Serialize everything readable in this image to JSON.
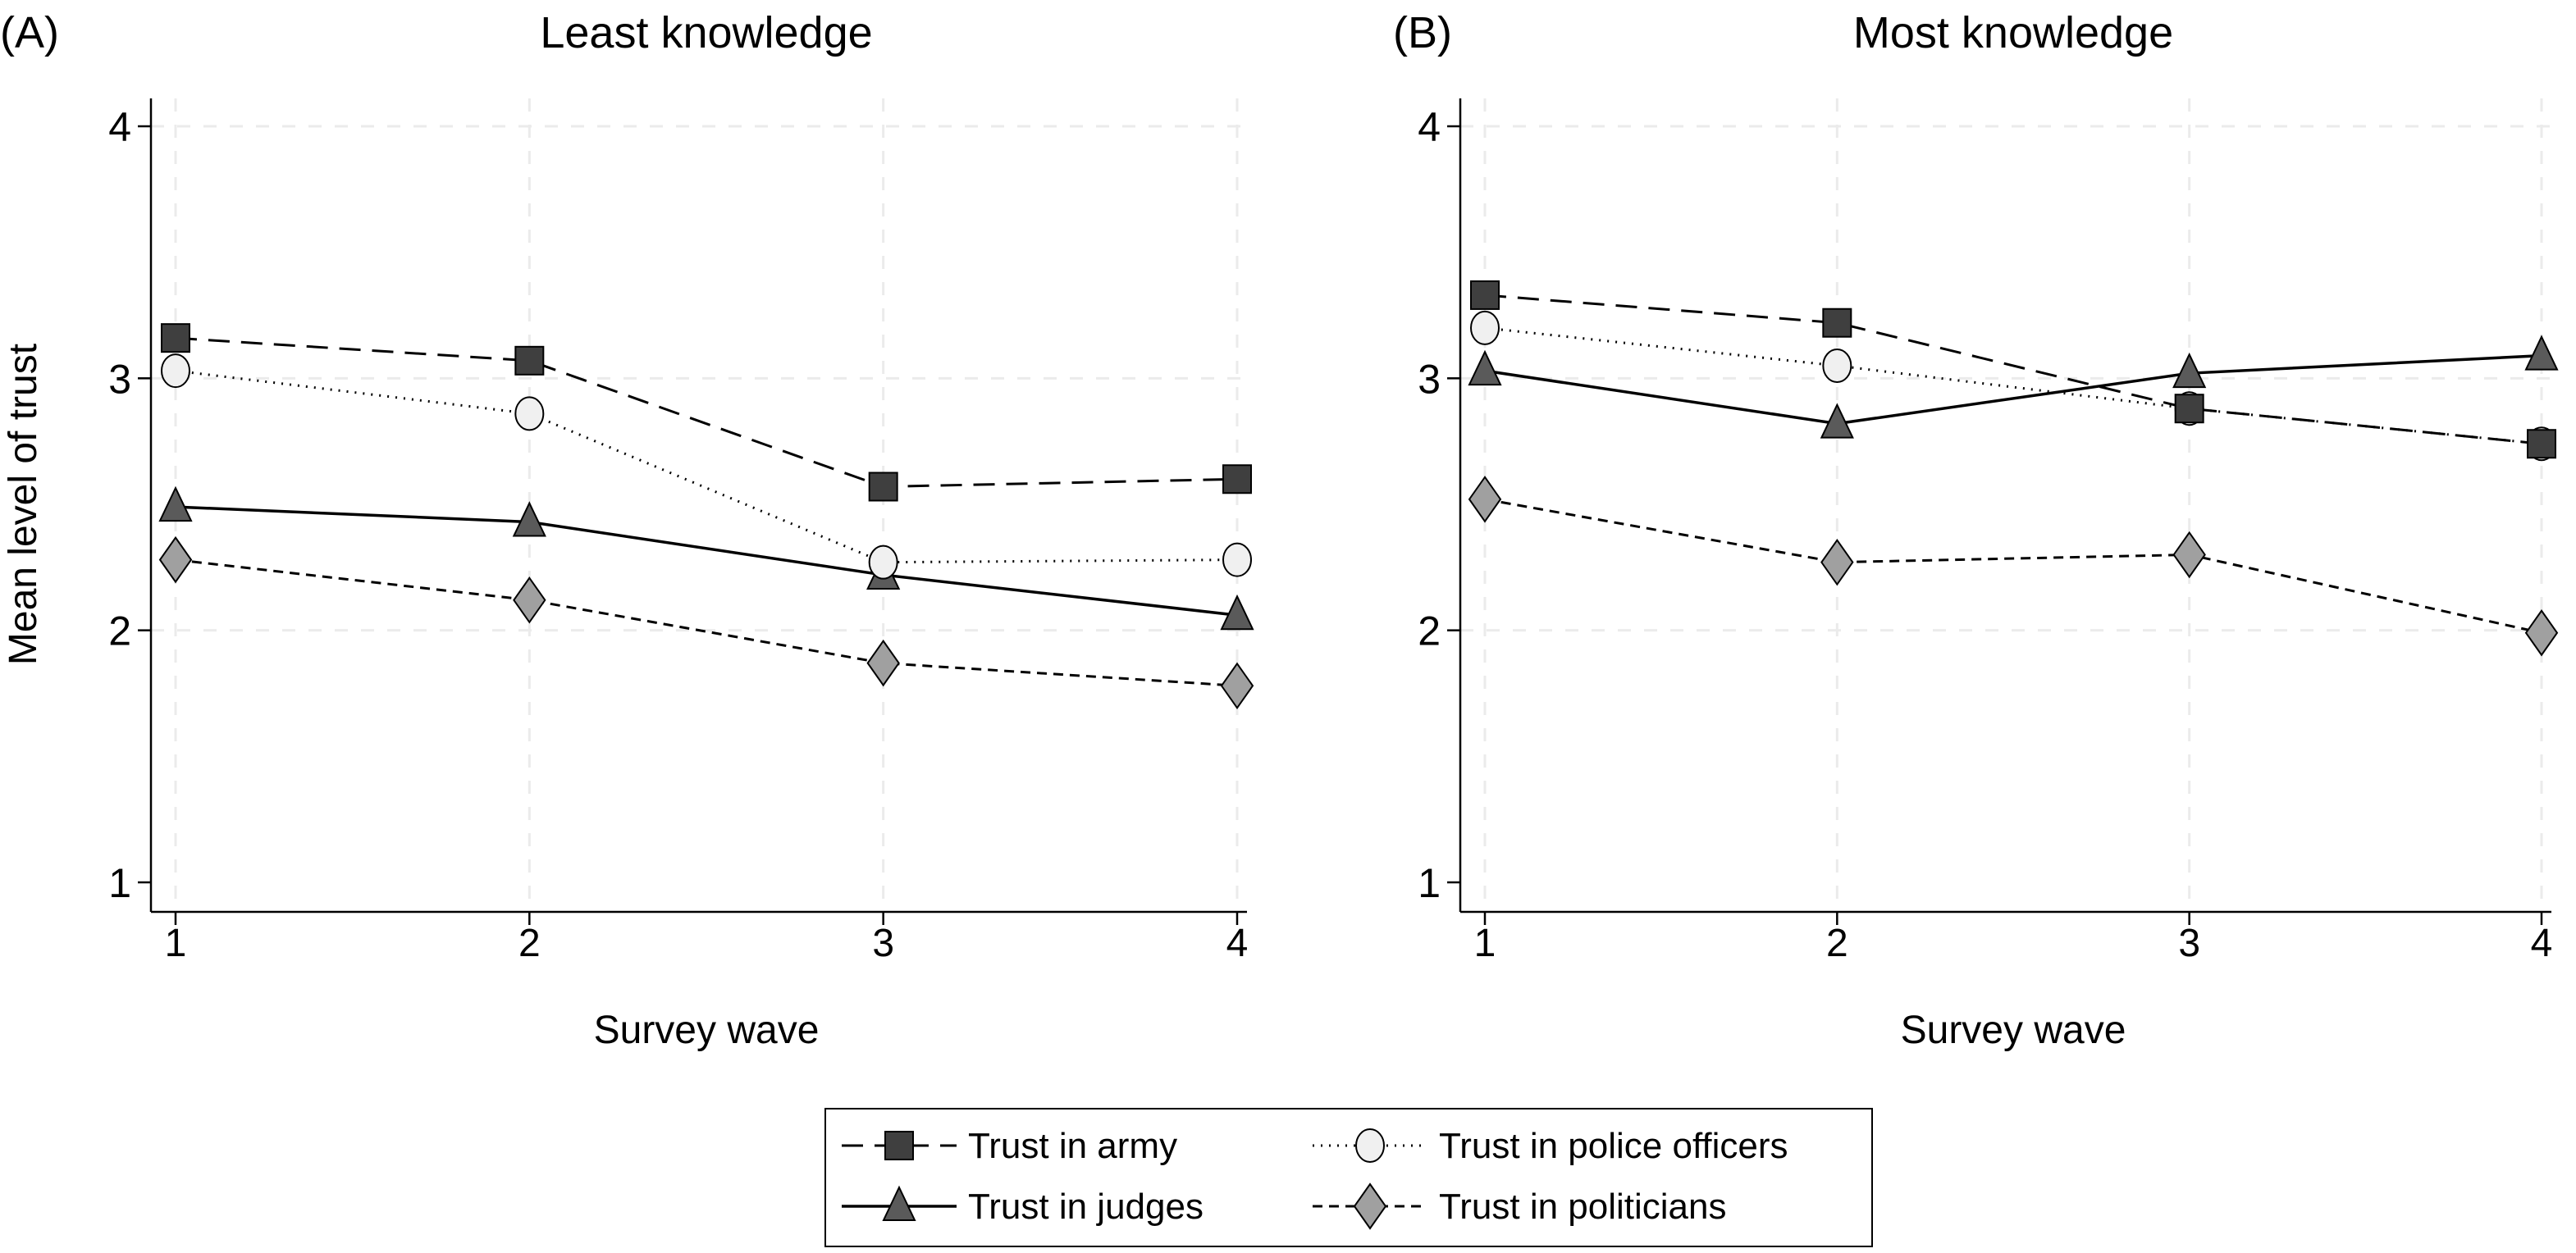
{
  "chart_data": [
    {
      "type": "line",
      "panel_label": "(A)",
      "title": "Least knowledge",
      "xlabel": "Survey wave",
      "ylabel": "Mean level of trust",
      "x": [
        1,
        2,
        3,
        4
      ],
      "xticks": [
        "1",
        "2",
        "3",
        "4"
      ],
      "yticks": [
        "1",
        "2",
        "3",
        "4"
      ],
      "ylim": [
        1,
        4
      ],
      "grid": true,
      "series": [
        {
          "name": "Trust in army",
          "values": [
            3.16,
            3.07,
            2.57,
            2.6
          ]
        },
        {
          "name": "Trust in police officers",
          "values": [
            3.03,
            2.86,
            2.27,
            2.28
          ]
        },
        {
          "name": "Trust in judges",
          "values": [
            2.49,
            2.43,
            2.22,
            2.06
          ]
        },
        {
          "name": "Trust in politicians",
          "values": [
            2.28,
            2.12,
            1.87,
            1.78
          ]
        }
      ]
    },
    {
      "type": "line",
      "panel_label": "(B)",
      "title": "Most knowledge",
      "xlabel": "Survey wave",
      "ylabel": "",
      "x": [
        1,
        2,
        3,
        4
      ],
      "xticks": [
        "1",
        "2",
        "3",
        "4"
      ],
      "yticks": [
        "1",
        "2",
        "3",
        "4"
      ],
      "ylim": [
        1,
        4
      ],
      "grid": true,
      "series": [
        {
          "name": "Trust in army",
          "values": [
            3.33,
            3.22,
            2.88,
            2.74
          ]
        },
        {
          "name": "Trust in police officers",
          "values": [
            3.2,
            3.05,
            2.88,
            2.74
          ]
        },
        {
          "name": "Trust in judges",
          "values": [
            3.03,
            2.82,
            3.02,
            3.09
          ]
        },
        {
          "name": "Trust in politicians",
          "values": [
            2.52,
            2.27,
            2.3,
            1.99
          ]
        }
      ]
    }
  ],
  "legend": {
    "placement": "bottom-center",
    "items": [
      {
        "label": "Trust in army",
        "marker": "square",
        "line": "long-dash",
        "color": "#3f3f3f"
      },
      {
        "label": "Trust in police officers",
        "marker": "circle",
        "line": "dotted",
        "color": "#f0f0f0"
      },
      {
        "label": "Trust in judges",
        "marker": "triangle",
        "line": "solid",
        "color": "#5a5a5a"
      },
      {
        "label": "Trust in politicians",
        "marker": "diamond",
        "line": "short-dash",
        "color": "#a0a0a0"
      }
    ]
  }
}
